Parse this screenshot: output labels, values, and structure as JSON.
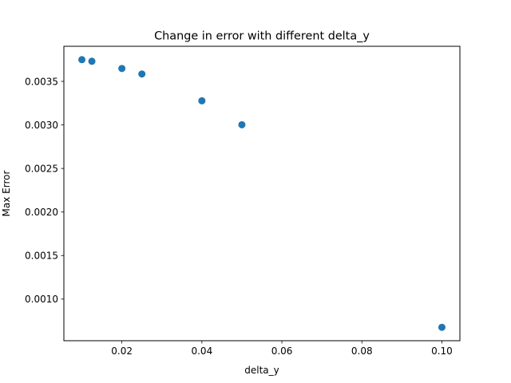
{
  "chart_data": {
    "type": "scatter",
    "title": "Change in error with different delta_y",
    "xlabel": "delta_y",
    "ylabel": "Max Error",
    "xlim": [
      0.0055,
      0.1045
    ],
    "ylim": [
      0.000522,
      0.003903
    ],
    "xticks": [
      0.02,
      0.04,
      0.06,
      0.08,
      0.1
    ],
    "xtick_labels": [
      "0.02",
      "0.04",
      "0.06",
      "0.08",
      "0.10"
    ],
    "yticks": [
      0.001,
      0.0015,
      0.002,
      0.0025,
      0.003,
      0.0035
    ],
    "ytick_labels": [
      "0.0010",
      "0.0015",
      "0.0020",
      "0.0025",
      "0.0030",
      "0.0035"
    ],
    "grid": false,
    "marker_color": "#1f77b4",
    "points": [
      {
        "x": 0.01,
        "y": 0.003749
      },
      {
        "x": 0.0125,
        "y": 0.003731
      },
      {
        "x": 0.02,
        "y": 0.003648
      },
      {
        "x": 0.025,
        "y": 0.003585
      },
      {
        "x": 0.04,
        "y": 0.003277
      },
      {
        "x": 0.05,
        "y": 0.003002
      },
      {
        "x": 0.1,
        "y": 0.000676
      }
    ]
  }
}
